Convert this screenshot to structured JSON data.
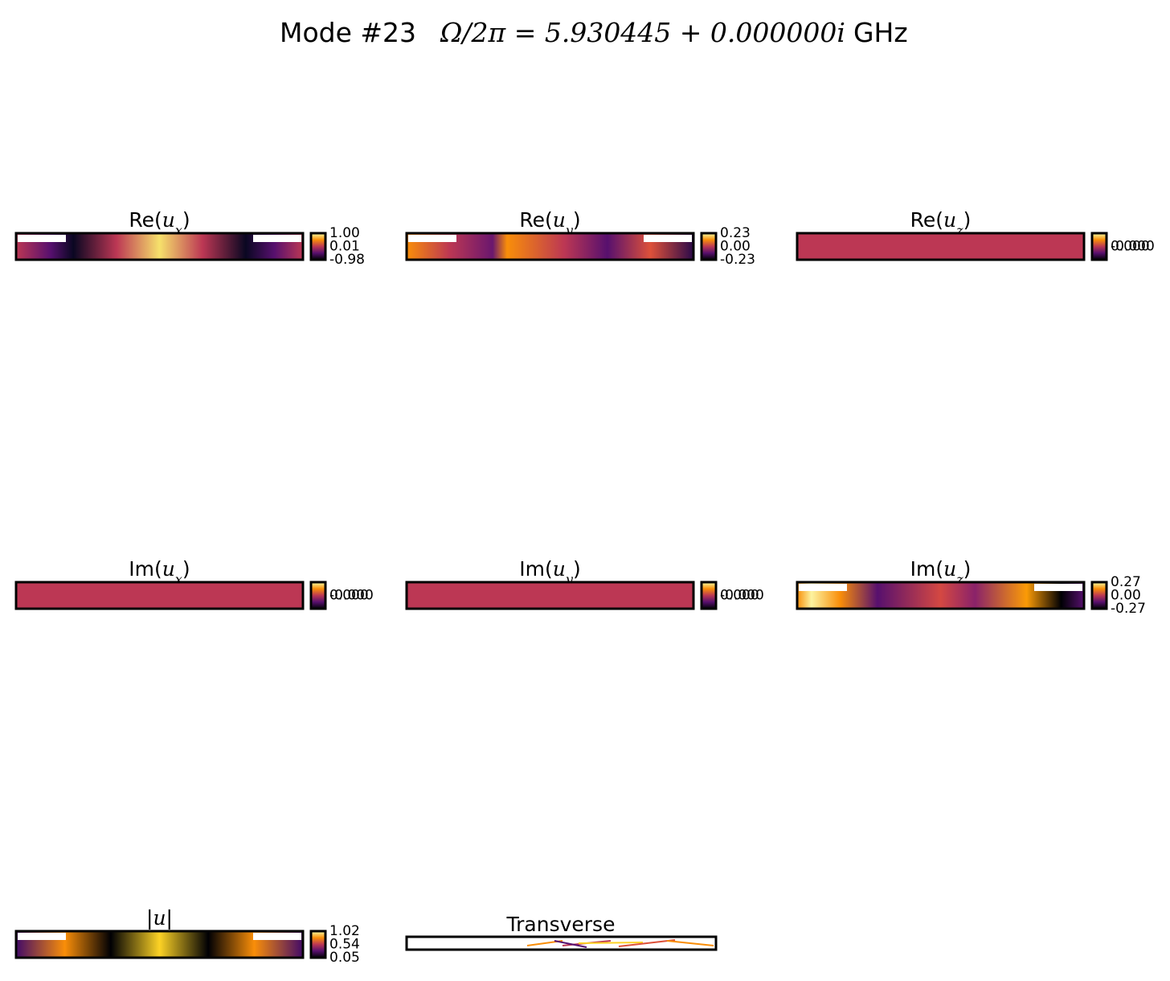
{
  "title": {
    "mode": "Mode #23",
    "frequency": "Ω/2π = 5.930445 + 0.000000i",
    "unit": "GHz"
  },
  "panels": [
    {
      "prefix": "Re(",
      "var": "u",
      "sub": "x",
      "suffix": ")",
      "colorbar_ticks": [
        "1.00",
        "0.01",
        "-0.98"
      ]
    },
    {
      "prefix": "Re(",
      "var": "u",
      "sub": "y",
      "suffix": ")",
      "colorbar_ticks": [
        "0.23",
        "0.00",
        "-0.23"
      ]
    },
    {
      "prefix": "Re(",
      "var": "u",
      "sub": "z",
      "suffix": ")",
      "colorbar_ticks": [
        "-0.000",
        "0.000"
      ]
    },
    {
      "prefix": "Im(",
      "var": "u",
      "sub": "x",
      "suffix": ")",
      "colorbar_ticks": [
        "-0.000",
        "0.000"
      ]
    },
    {
      "prefix": "Im(",
      "var": "u",
      "sub": "y",
      "suffix": ")",
      "colorbar_ticks": [
        "-0.000",
        "0.000"
      ]
    },
    {
      "prefix": "Im(",
      "var": "u",
      "sub": "z",
      "suffix": ")",
      "colorbar_ticks": [
        "0.27",
        "0.00",
        "-0.27"
      ]
    },
    {
      "prefix": "|",
      "var": "u",
      "suffix": "|",
      "colorbar_ticks": [
        "1.02",
        "0.54",
        "0.05"
      ]
    }
  ],
  "transverse": {
    "title": "Transverse"
  }
}
